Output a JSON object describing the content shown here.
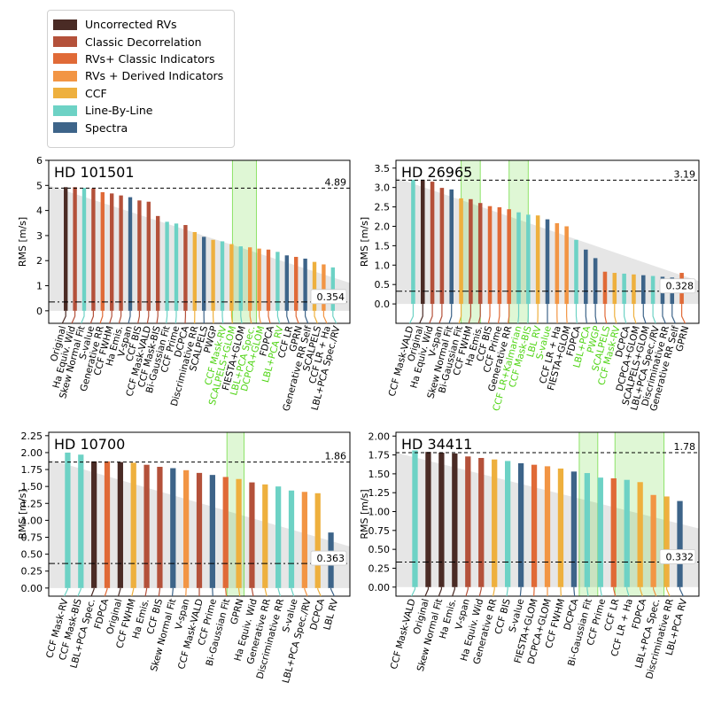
{
  "legend": [
    {
      "label": "Uncorrected RVs",
      "color": "#4a2b25"
    },
    {
      "label": "Classic Decorrelation",
      "color": "#b4513a"
    },
    {
      "label": "RVs+ Classic Indicators",
      "color": "#e06a37"
    },
    {
      "label": "RVs + Derived Indicators",
      "color": "#f29544"
    },
    {
      "label": "CCF",
      "color": "#eeb03e"
    },
    {
      "label": "Line-By-Line",
      "color": "#6dd2c5"
    },
    {
      "label": "Spectra",
      "color": "#3d6489"
    }
  ],
  "highlight_color": "#4fd414",
  "chart_data": [
    {
      "type": "bar",
      "title": "HD 101501",
      "ylabel": "RMS [m/s]",
      "ylim": [
        -0.5,
        6
      ],
      "yticks": [
        0,
        1,
        2,
        3,
        4,
        5,
        6
      ],
      "upper_line": 4.89,
      "lower_line": 0.354,
      "upper_label": "4.89",
      "lower_label": "0.354",
      "wedge_start": 5.0,
      "highlight_columns": [
        [
          18.6,
          21.2
        ]
      ],
      "bars": [
        {
          "label": "Original",
          "value": 4.93,
          "group": "Uncorrected RVs",
          "highlight": false
        },
        {
          "label": "Ha Equiv. Wid",
          "value": 4.93,
          "group": "Classic Decorrelation",
          "highlight": false
        },
        {
          "label": "Skew Normal Fit",
          "value": 4.9,
          "group": "Line-By-Line",
          "highlight": false
        },
        {
          "label": "S-value",
          "value": 4.88,
          "group": "Classic Decorrelation",
          "highlight": false
        },
        {
          "label": "Generative RR",
          "value": 4.73,
          "group": "RVs+ Classic Indicators",
          "highlight": false
        },
        {
          "label": "CCF FWHM",
          "value": 4.68,
          "group": "Classic Decorrelation",
          "highlight": false
        },
        {
          "label": "Ha Emis.",
          "value": 4.6,
          "group": "Classic Decorrelation",
          "highlight": false
        },
        {
          "label": "V-span",
          "value": 4.53,
          "group": "Spectra",
          "highlight": false
        },
        {
          "label": "CCF BIS",
          "value": 4.4,
          "group": "Classic Decorrelation",
          "highlight": false
        },
        {
          "label": "CCF Mask-VALD",
          "value": 4.35,
          "group": "Classic Decorrelation",
          "highlight": false
        },
        {
          "label": "CCF Mask-BIS",
          "value": 3.78,
          "group": "Classic Decorrelation",
          "highlight": false
        },
        {
          "label": "Bi-Gaussian Fit",
          "value": 3.55,
          "group": "Line-By-Line",
          "highlight": false
        },
        {
          "label": "CCF Prime",
          "value": 3.48,
          "group": "Line-By-Line",
          "highlight": false
        },
        {
          "label": "DCPCA",
          "value": 3.42,
          "group": "Classic Decorrelation",
          "highlight": false
        },
        {
          "label": "Discriminative RR",
          "value": 3.14,
          "group": "CCF",
          "highlight": false
        },
        {
          "label": "SCALPELS",
          "value": 2.95,
          "group": "Spectra",
          "highlight": false
        },
        {
          "label": "PWGP",
          "value": 2.83,
          "group": "CCF",
          "highlight": false
        },
        {
          "label": "CCF Mask-RV",
          "value": 2.77,
          "group": "Line-By-Line",
          "highlight": true
        },
        {
          "label": "SCALPELS+GLOM",
          "value": 2.66,
          "group": "CCF",
          "highlight": true
        },
        {
          "label": "FIESTA+GLOM",
          "value": 2.57,
          "group": "Line-By-Line",
          "highlight": false
        },
        {
          "label": "LBL+PCA Spec.",
          "value": 2.53,
          "group": "RVs + Derived Indicators",
          "highlight": true
        },
        {
          "label": "DCPCA+GLOM",
          "value": 2.48,
          "group": "RVs + Derived Indicators",
          "highlight": true
        },
        {
          "label": "FDPCA",
          "value": 2.44,
          "group": "RVs+ Classic Indicators",
          "highlight": false
        },
        {
          "label": "LBL+PCA RV",
          "value": 2.35,
          "group": "Line-By-Line",
          "highlight": true
        },
        {
          "label": "CCF LR",
          "value": 2.21,
          "group": "Spectra",
          "highlight": false
        },
        {
          "label": "GPRN",
          "value": 2.15,
          "group": "RVs+ Classic Indicators",
          "highlight": false
        },
        {
          "label": "Generative RR Self",
          "value": 2.08,
          "group": "Spectra",
          "highlight": false
        },
        {
          "label": "SCALPELS",
          "value": 1.95,
          "group": "CCF",
          "highlight": false
        },
        {
          "label": "CCF LR + Ha",
          "value": 1.85,
          "group": "RVs + Derived Indicators",
          "highlight": false
        },
        {
          "label": "LBL+PCA Spec./RV",
          "value": 1.73,
          "group": "Line-By-Line",
          "highlight": false
        }
      ]
    },
    {
      "type": "bar",
      "title": "HD 26965",
      "ylabel": "RMS [m/s]",
      "ylim": [
        -0.5,
        3.7
      ],
      "yticks": [
        0,
        0.5,
        1,
        1.5,
        2,
        2.5,
        3,
        3.5
      ],
      "yticklabels": [
        "0.0",
        "0.5",
        "1.0",
        "1.5",
        "2.0",
        "2.5",
        "3.0",
        "3.5"
      ],
      "upper_line": 3.19,
      "lower_line": 0.328,
      "upper_label": "3.19",
      "lower_label": "0.328",
      "wedge_start": 3.25,
      "highlight_columns": [
        [
          5.5,
          7.5
        ],
        [
          10.5,
          12.5
        ]
      ],
      "bars": [
        {
          "label": "CCF Mask-VALD",
          "value": 3.2,
          "group": "Line-By-Line",
          "highlight": false
        },
        {
          "label": "Original",
          "value": 3.2,
          "group": "Uncorrected RVs",
          "highlight": false
        },
        {
          "label": "Ha Equiv. Wid",
          "value": 3.15,
          "group": "Classic Decorrelation",
          "highlight": false
        },
        {
          "label": "V-span",
          "value": 2.99,
          "group": "Classic Decorrelation",
          "highlight": false
        },
        {
          "label": "Skew Normal Fit",
          "value": 2.95,
          "group": "Spectra",
          "highlight": false
        },
        {
          "label": "Bi-Gaussian Fit",
          "value": 2.72,
          "group": "CCF",
          "highlight": false
        },
        {
          "label": "CCF FWHM",
          "value": 2.7,
          "group": "Classic Decorrelation",
          "highlight": false
        },
        {
          "label": "Ha Emis.",
          "value": 2.6,
          "group": "Classic Decorrelation",
          "highlight": false
        },
        {
          "label": "CCF BIS",
          "value": 2.52,
          "group": "RVs+ Classic Indicators",
          "highlight": false
        },
        {
          "label": "CCF Prime",
          "value": 2.49,
          "group": "RVs+ Classic Indicators",
          "highlight": false
        },
        {
          "label": "Generative RR",
          "value": 2.44,
          "group": "RVs+ Classic Indicators",
          "highlight": false
        },
        {
          "label": "CCF LR+Kalmarian",
          "value": 2.36,
          "group": "Line-By-Line",
          "highlight": true
        },
        {
          "label": "CCF Mask-BIS",
          "value": 2.3,
          "group": "Line-By-Line",
          "highlight": true
        },
        {
          "label": "LBL RV",
          "value": 2.28,
          "group": "CCF",
          "highlight": true
        },
        {
          "label": "S-value",
          "value": 2.18,
          "group": "Spectra",
          "highlight": true
        },
        {
          "label": "CCF LR + Ha",
          "value": 2.08,
          "group": "RVs + Derived Indicators",
          "highlight": false
        },
        {
          "label": "FIESTA+GLOM",
          "value": 2.0,
          "group": "RVs + Derived Indicators",
          "highlight": false
        },
        {
          "label": "FDPCA",
          "value": 1.65,
          "group": "Line-By-Line",
          "highlight": false
        },
        {
          "label": "LBL+PCA",
          "value": 1.4,
          "group": "Spectra",
          "highlight": true
        },
        {
          "label": "PWGP",
          "value": 1.18,
          "group": "Spectra",
          "highlight": true
        },
        {
          "label": "SCALPELS",
          "value": 0.83,
          "group": "RVs+ Classic Indicators",
          "highlight": true
        },
        {
          "label": "CCF Mask-RV",
          "value": 0.8,
          "group": "CCF",
          "highlight": true
        },
        {
          "label": "DCPCA",
          "value": 0.78,
          "group": "Line-By-Line",
          "highlight": false
        },
        {
          "label": "DCPCA+GLOM",
          "value": 0.76,
          "group": "CCF",
          "highlight": false
        },
        {
          "label": "SCALPELS+GLOM",
          "value": 0.74,
          "group": "Spectra",
          "highlight": false
        },
        {
          "label": "LBL+PCA Spec./RV",
          "value": 0.72,
          "group": "Line-By-Line",
          "highlight": false
        },
        {
          "label": "Discriminative RR",
          "value": 0.7,
          "group": "Spectra",
          "highlight": false
        },
        {
          "label": "Generative RR Self",
          "value": 0.68,
          "group": "Spectra",
          "highlight": false
        },
        {
          "label": "GPRN",
          "value": 0.8,
          "group": "RVs+ Classic Indicators",
          "highlight": false
        }
      ]
    },
    {
      "type": "bar",
      "title": "HD 10700",
      "ylabel": "RMS [m/s]",
      "ylim": [
        -0.12,
        2.3
      ],
      "yticks": [
        0,
        0.25,
        0.5,
        0.75,
        1,
        1.25,
        1.5,
        1.75,
        2,
        2.25
      ],
      "yticklabels": [
        "0.00",
        "0.25",
        "0.50",
        "0.75",
        "1.00",
        "1.25",
        "1.50",
        "1.75",
        "2.00",
        "2.25"
      ],
      "upper_line": 1.86,
      "lower_line": 0.363,
      "upper_label": "1.86",
      "lower_label": "0.363",
      "wedge_start": 1.9,
      "highlight_columns": [
        [
          12.6,
          13.9
        ]
      ],
      "bars": [
        {
          "label": "CCF Mask-RV",
          "value": 2.0,
          "group": "Line-By-Line",
          "highlight": false
        },
        {
          "label": "CCF Mask-BIS",
          "value": 1.97,
          "group": "Line-By-Line",
          "highlight": false
        },
        {
          "label": "LBL+PCA Spec.",
          "value": 1.87,
          "group": "Uncorrected RVs",
          "highlight": false
        },
        {
          "label": "FDPCA",
          "value": 1.87,
          "group": "RVs+ Classic Indicators",
          "highlight": false
        },
        {
          "label": "Original",
          "value": 1.86,
          "group": "Uncorrected RVs",
          "highlight": false
        },
        {
          "label": "CCF FWHM",
          "value": 1.85,
          "group": "CCF",
          "highlight": false
        },
        {
          "label": "Ha Emis.",
          "value": 1.82,
          "group": "Classic Decorrelation",
          "highlight": false
        },
        {
          "label": "CCF BIS",
          "value": 1.79,
          "group": "Classic Decorrelation",
          "highlight": false
        },
        {
          "label": "Skew Normal Fit",
          "value": 1.77,
          "group": "Spectra",
          "highlight": false
        },
        {
          "label": "V-span",
          "value": 1.74,
          "group": "RVs + Derived Indicators",
          "highlight": false
        },
        {
          "label": "CCF Mask-VALD",
          "value": 1.7,
          "group": "Classic Decorrelation",
          "highlight": false
        },
        {
          "label": "CCF Prime",
          "value": 1.67,
          "group": "Spectra",
          "highlight": false
        },
        {
          "label": "Bi-Gaussian Fit",
          "value": 1.64,
          "group": "RVs+ Classic Indicators",
          "highlight": false
        },
        {
          "label": "GPRN",
          "value": 1.61,
          "group": "CCF",
          "highlight": false
        },
        {
          "label": "Ha Equiv. Wid",
          "value": 1.56,
          "group": "Classic Decorrelation",
          "highlight": false
        },
        {
          "label": "Generative RR",
          "value": 1.53,
          "group": "CCF",
          "highlight": false
        },
        {
          "label": "Discriminative RR",
          "value": 1.5,
          "group": "Line-By-Line",
          "highlight": false
        },
        {
          "label": "S-value",
          "value": 1.44,
          "group": "Line-By-Line",
          "highlight": false
        },
        {
          "label": "LBL+PCA Spec./RV",
          "value": 1.42,
          "group": "RVs + Derived Indicators",
          "highlight": false
        },
        {
          "label": "DCPCA",
          "value": 1.4,
          "group": "CCF",
          "highlight": false
        },
        {
          "label": "LBL RV",
          "value": 0.82,
          "group": "Spectra",
          "highlight": false
        }
      ]
    },
    {
      "type": "bar",
      "title": "HD 34411",
      "ylabel": "RMS [m/s]",
      "ylim": [
        -0.12,
        2.05
      ],
      "yticks": [
        0,
        0.25,
        0.5,
        0.75,
        1,
        1.25,
        1.5,
        1.75,
        2
      ],
      "yticklabels": [
        "0.00",
        "0.25",
        "0.50",
        "0.75",
        "1.00",
        "1.25",
        "1.50",
        "1.75",
        "2.00"
      ],
      "upper_line": 1.78,
      "lower_line": 0.332,
      "upper_label": "1.78",
      "lower_label": "0.332",
      "wedge_start": 1.78,
      "highlight_columns": [
        [
          12.9,
          14.3
        ],
        [
          15.6,
          19.3
        ]
      ],
      "bars": [
        {
          "label": "CCF Mask-VALD",
          "value": 1.81,
          "group": "Line-By-Line",
          "highlight": false
        },
        {
          "label": "Original",
          "value": 1.79,
          "group": "Uncorrected RVs",
          "highlight": false
        },
        {
          "label": "Skew Normal Fit",
          "value": 1.78,
          "group": "Uncorrected RVs",
          "highlight": false
        },
        {
          "label": "Ha Emis.",
          "value": 1.77,
          "group": "Uncorrected RVs",
          "highlight": false
        },
        {
          "label": "V-span",
          "value": 1.73,
          "group": "Classic Decorrelation",
          "highlight": false
        },
        {
          "label": "Ha Equiv. Wid",
          "value": 1.71,
          "group": "Classic Decorrelation",
          "highlight": false
        },
        {
          "label": "Generative RR",
          "value": 1.69,
          "group": "CCF",
          "highlight": false
        },
        {
          "label": "CCF BIS",
          "value": 1.67,
          "group": "Line-By-Line",
          "highlight": false
        },
        {
          "label": "S-value",
          "value": 1.64,
          "group": "Spectra",
          "highlight": false
        },
        {
          "label": "FIESTA+GLOM",
          "value": 1.62,
          "group": "RVs+ Classic Indicators",
          "highlight": false
        },
        {
          "label": "DCPCA+GLOM",
          "value": 1.6,
          "group": "RVs + Derived Indicators",
          "highlight": false
        },
        {
          "label": "CCF FWHM",
          "value": 1.57,
          "group": "CCF",
          "highlight": false
        },
        {
          "label": "DCPCA",
          "value": 1.53,
          "group": "Spectra",
          "highlight": false
        },
        {
          "label": "Bi-Gaussian Fit",
          "value": 1.51,
          "group": "Line-By-Line",
          "highlight": false
        },
        {
          "label": "CCF Prime",
          "value": 1.45,
          "group": "Line-By-Line",
          "highlight": false
        },
        {
          "label": "CCF LR",
          "value": 1.44,
          "group": "RVs+ Classic Indicators",
          "highlight": false
        },
        {
          "label": "CCF LR + Ha",
          "value": 1.42,
          "group": "Line-By-Line",
          "highlight": false
        },
        {
          "label": "FDPCA",
          "value": 1.39,
          "group": "CCF",
          "highlight": false
        },
        {
          "label": "LBL+PCA Spec.",
          "value": 1.22,
          "group": "RVs + Derived Indicators",
          "highlight": false
        },
        {
          "label": "Discriminative RR",
          "value": 1.2,
          "group": "CCF",
          "highlight": false
        },
        {
          "label": "LBL+PCA RV",
          "value": 1.14,
          "group": "Spectra",
          "highlight": false
        }
      ]
    }
  ]
}
